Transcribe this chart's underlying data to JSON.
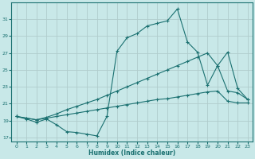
{
  "xlabel": "Humidex (Indice chaleur)",
  "background_color": "#c8e8e8",
  "grid_color": "#b0cccc",
  "line_color": "#1a7070",
  "xlim": [
    -0.5,
    23.5
  ],
  "ylim": [
    16.5,
    33.0
  ],
  "yticks": [
    17,
    19,
    21,
    23,
    25,
    27,
    29,
    31
  ],
  "xticks": [
    0,
    1,
    2,
    3,
    4,
    5,
    6,
    7,
    8,
    9,
    10,
    11,
    12,
    13,
    14,
    15,
    16,
    17,
    18,
    19,
    20,
    21,
    22,
    23
  ],
  "line1_x": [
    0,
    1,
    2,
    3,
    4,
    5,
    6,
    7,
    8,
    9,
    10,
    11,
    12,
    13,
    14,
    15,
    16,
    17,
    18,
    19,
    20,
    21,
    22,
    23
  ],
  "line1_y": [
    19.5,
    19.2,
    18.8,
    19.2,
    18.5,
    17.7,
    17.6,
    17.4,
    17.2,
    19.5,
    27.2,
    28.8,
    29.3,
    30.2,
    30.5,
    30.8,
    32.2,
    28.3,
    27.1,
    23.2,
    25.5,
    27.1,
    22.8,
    21.5
  ],
  "line2_x": [
    0,
    1,
    2,
    3,
    4,
    5,
    6,
    7,
    8,
    9,
    10,
    11,
    12,
    13,
    14,
    15,
    16,
    17,
    18,
    19,
    20,
    21,
    22,
    23
  ],
  "line2_y": [
    19.5,
    19.3,
    19.1,
    19.4,
    19.8,
    20.3,
    20.7,
    21.1,
    21.5,
    22.0,
    22.5,
    23.0,
    23.5,
    24.0,
    24.5,
    25.0,
    25.5,
    26.0,
    26.5,
    27.0,
    25.5,
    22.5,
    22.3,
    21.5
  ],
  "line3_x": [
    0,
    1,
    2,
    3,
    4,
    5,
    6,
    7,
    8,
    9,
    10,
    11,
    12,
    13,
    14,
    15,
    16,
    17,
    18,
    19,
    20,
    21,
    22,
    23
  ],
  "line3_y": [
    19.5,
    19.3,
    19.1,
    19.3,
    19.5,
    19.7,
    19.9,
    20.1,
    20.3,
    20.5,
    20.7,
    20.9,
    21.1,
    21.3,
    21.5,
    21.6,
    21.8,
    22.0,
    22.2,
    22.4,
    22.5,
    21.3,
    21.1,
    21.1
  ]
}
